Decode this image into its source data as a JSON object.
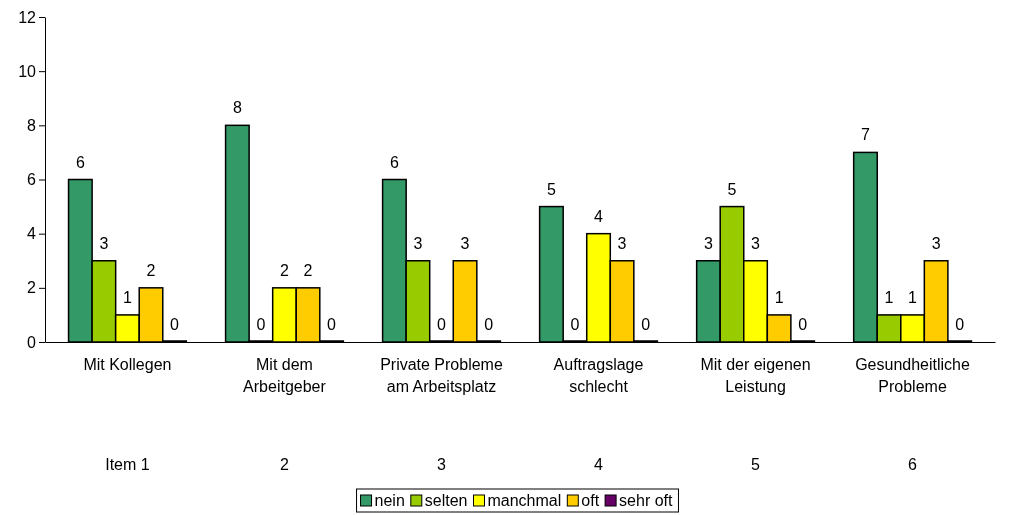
{
  "chart_data": {
    "type": "bar",
    "categories": [
      "Mit Kollegen",
      "Mit dem Arbeitgeber",
      "Private Probleme am Arbeitsplatz",
      "Auftragslage schlecht",
      "Mit der eigenen Leistung",
      "Gesundheitliche Probleme"
    ],
    "series": [
      {
        "name": "nein",
        "color": "#339966",
        "values": [
          6,
          8,
          6,
          5,
          3,
          7
        ]
      },
      {
        "name": "selten",
        "color": "#99cc00",
        "values": [
          3,
          0,
          3,
          0,
          5,
          1
        ]
      },
      {
        "name": "manchmal",
        "color": "#ffff00",
        "values": [
          1,
          2,
          0,
          4,
          3,
          1
        ]
      },
      {
        "name": "oft",
        "color": "#ffcc00",
        "values": [
          2,
          2,
          3,
          3,
          1,
          3
        ]
      },
      {
        "name": "sehr oft",
        "color": "#660066",
        "values": [
          0,
          0,
          0,
          0,
          0,
          0
        ]
      }
    ],
    "ylim": [
      0,
      12
    ],
    "yticks": [
      0,
      2,
      4,
      6,
      8,
      10,
      12
    ],
    "data_labels": true,
    "grid": false,
    "legend": "bottom",
    "annotations": [
      "Item 1",
      "2",
      "3",
      "4",
      "5",
      "6"
    ]
  }
}
